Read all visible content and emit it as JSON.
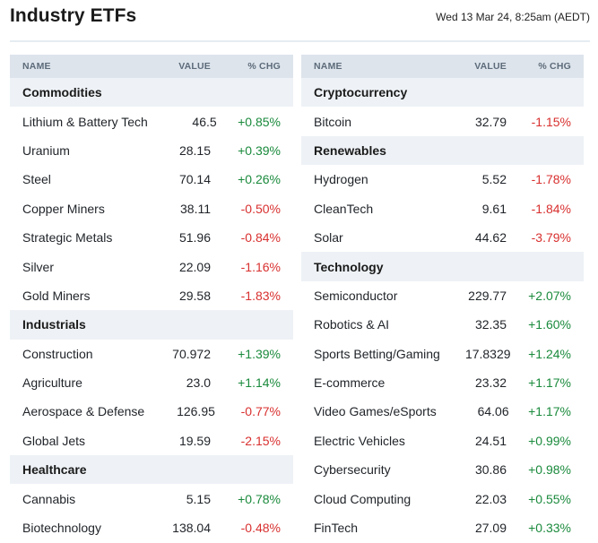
{
  "header": {
    "title": "Industry ETFs",
    "timestamp": "Wed 13 Mar 24, 8:25am (AEDT)"
  },
  "columns": {
    "name": "NAME",
    "value": "VALUE",
    "change": "% CHG"
  },
  "colors": {
    "positive": "#1a8a3c",
    "negative": "#d8302f",
    "header_bg": "#dde4ec",
    "group_bg": "#eef2f6"
  },
  "left_table": [
    {
      "type": "group",
      "name": "Commodities"
    },
    {
      "type": "item",
      "name": "Lithium & Battery Tech",
      "value": "46.5",
      "change": "+0.85%",
      "dir": "pos"
    },
    {
      "type": "item",
      "name": "Uranium",
      "value": "28.15",
      "change": "+0.39%",
      "dir": "pos"
    },
    {
      "type": "item",
      "name": "Steel",
      "value": "70.14",
      "change": "+0.26%",
      "dir": "pos"
    },
    {
      "type": "item",
      "name": "Copper Miners",
      "value": "38.11",
      "change": "-0.50%",
      "dir": "neg"
    },
    {
      "type": "item",
      "name": "Strategic Metals",
      "value": "51.96",
      "change": "-0.84%",
      "dir": "neg"
    },
    {
      "type": "item",
      "name": "Silver",
      "value": "22.09",
      "change": "-1.16%",
      "dir": "neg"
    },
    {
      "type": "item",
      "name": "Gold Miners",
      "value": "29.58",
      "change": "-1.83%",
      "dir": "neg"
    },
    {
      "type": "group",
      "name": "Industrials"
    },
    {
      "type": "item",
      "name": "Construction",
      "value": "70.972",
      "change": "+1.39%",
      "dir": "pos"
    },
    {
      "type": "item",
      "name": "Agriculture",
      "value": "23.0",
      "change": "+1.14%",
      "dir": "pos"
    },
    {
      "type": "item",
      "name": "Aerospace & Defense",
      "value": "126.95",
      "change": "-0.77%",
      "dir": "neg"
    },
    {
      "type": "item",
      "name": "Global Jets",
      "value": "19.59",
      "change": "-2.15%",
      "dir": "neg"
    },
    {
      "type": "group",
      "name": "Healthcare"
    },
    {
      "type": "item",
      "name": "Cannabis",
      "value": "5.15",
      "change": "+0.78%",
      "dir": "pos"
    },
    {
      "type": "item",
      "name": "Biotechnology",
      "value": "138.04",
      "change": "-0.48%",
      "dir": "neg"
    }
  ],
  "right_table": [
    {
      "type": "group",
      "name": "Cryptocurrency"
    },
    {
      "type": "item",
      "name": "Bitcoin",
      "value": "32.79",
      "change": "-1.15%",
      "dir": "neg"
    },
    {
      "type": "group",
      "name": "Renewables"
    },
    {
      "type": "item",
      "name": "Hydrogen",
      "value": "5.52",
      "change": "-1.78%",
      "dir": "neg"
    },
    {
      "type": "item",
      "name": "CleanTech",
      "value": "9.61",
      "change": "-1.84%",
      "dir": "neg"
    },
    {
      "type": "item",
      "name": "Solar",
      "value": "44.62",
      "change": "-3.79%",
      "dir": "neg"
    },
    {
      "type": "group",
      "name": "Technology"
    },
    {
      "type": "item",
      "name": "Semiconductor",
      "value": "229.77",
      "change": "+2.07%",
      "dir": "pos"
    },
    {
      "type": "item",
      "name": "Robotics & AI",
      "value": "32.35",
      "change": "+1.60%",
      "dir": "pos"
    },
    {
      "type": "item",
      "name": "Sports Betting/Gaming",
      "value": "17.8329",
      "change": "+1.24%",
      "dir": "pos"
    },
    {
      "type": "item",
      "name": "E-commerce",
      "value": "23.32",
      "change": "+1.17%",
      "dir": "pos"
    },
    {
      "type": "item",
      "name": "Video Games/eSports",
      "value": "64.06",
      "change": "+1.17%",
      "dir": "pos"
    },
    {
      "type": "item",
      "name": "Electric Vehicles",
      "value": "24.51",
      "change": "+0.99%",
      "dir": "pos"
    },
    {
      "type": "item",
      "name": "Cybersecurity",
      "value": "30.86",
      "change": "+0.98%",
      "dir": "pos"
    },
    {
      "type": "item",
      "name": "Cloud Computing",
      "value": "22.03",
      "change": "+0.55%",
      "dir": "pos"
    },
    {
      "type": "item",
      "name": "FinTech",
      "value": "27.09",
      "change": "+0.33%",
      "dir": "pos"
    }
  ]
}
